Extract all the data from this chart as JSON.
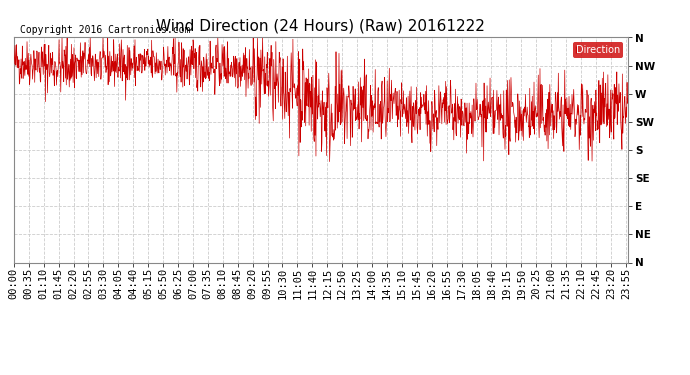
{
  "title": "Wind Direction (24 Hours) (Raw) 20161222",
  "copyright": "Copyright 2016 Cartronics.com",
  "legend_label": "Direction",
  "legend_bg": "#cc0000",
  "legend_text_color": "#ffffff",
  "line_color": "#cc0000",
  "bg_color": "#ffffff",
  "plot_bg_color": "#ffffff",
  "grid_color": "#cccccc",
  "ytick_labels": [
    "N",
    "NW",
    "W",
    "SW",
    "S",
    "SE",
    "E",
    "NE",
    "N"
  ],
  "ytick_values": [
    360,
    315,
    270,
    225,
    180,
    135,
    90,
    45,
    0
  ],
  "ylim": [
    0,
    360
  ],
  "title_fontsize": 11,
  "copyright_fontsize": 7,
  "tick_fontsize": 7.5,
  "seed": 42,
  "n_points": 1440
}
